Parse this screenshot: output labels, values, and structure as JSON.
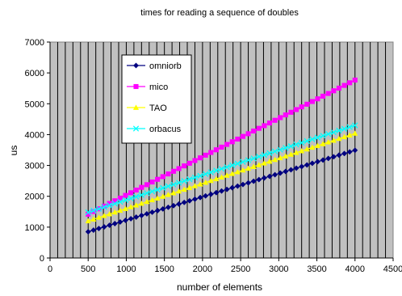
{
  "chart_data": {
    "type": "line",
    "title": "times for reading a sequence of doubles",
    "xlabel": "number of elements",
    "ylabel": "us",
    "xlim": [
      0,
      4500
    ],
    "ylim": [
      0,
      7000
    ],
    "x_ticks": [
      0,
      500,
      1000,
      1500,
      2000,
      2500,
      3000,
      3500,
      4000,
      4500
    ],
    "y_ticks": [
      0,
      1000,
      2000,
      3000,
      4000,
      5000,
      6000,
      7000
    ],
    "x_start": 500,
    "x_end": 4050,
    "x_step": 70,
    "grid": "vertical",
    "legend_position": "top-left",
    "series": [
      {
        "name": "omniorb",
        "color": "#000080",
        "marker": "diamond",
        "y_start": 850,
        "y_end": 3530
      },
      {
        "name": "mico",
        "color": "#ff00ff",
        "marker": "square",
        "y_start": 1420,
        "y_end": 5830
      },
      {
        "name": "TAO",
        "color": "#ffff00",
        "marker": "triangle",
        "y_start": 1200,
        "y_end": 4080
      },
      {
        "name": "orbacus",
        "color": "#00ffff",
        "marker": "x",
        "y_start": 1480,
        "y_end": 4340
      }
    ]
  }
}
